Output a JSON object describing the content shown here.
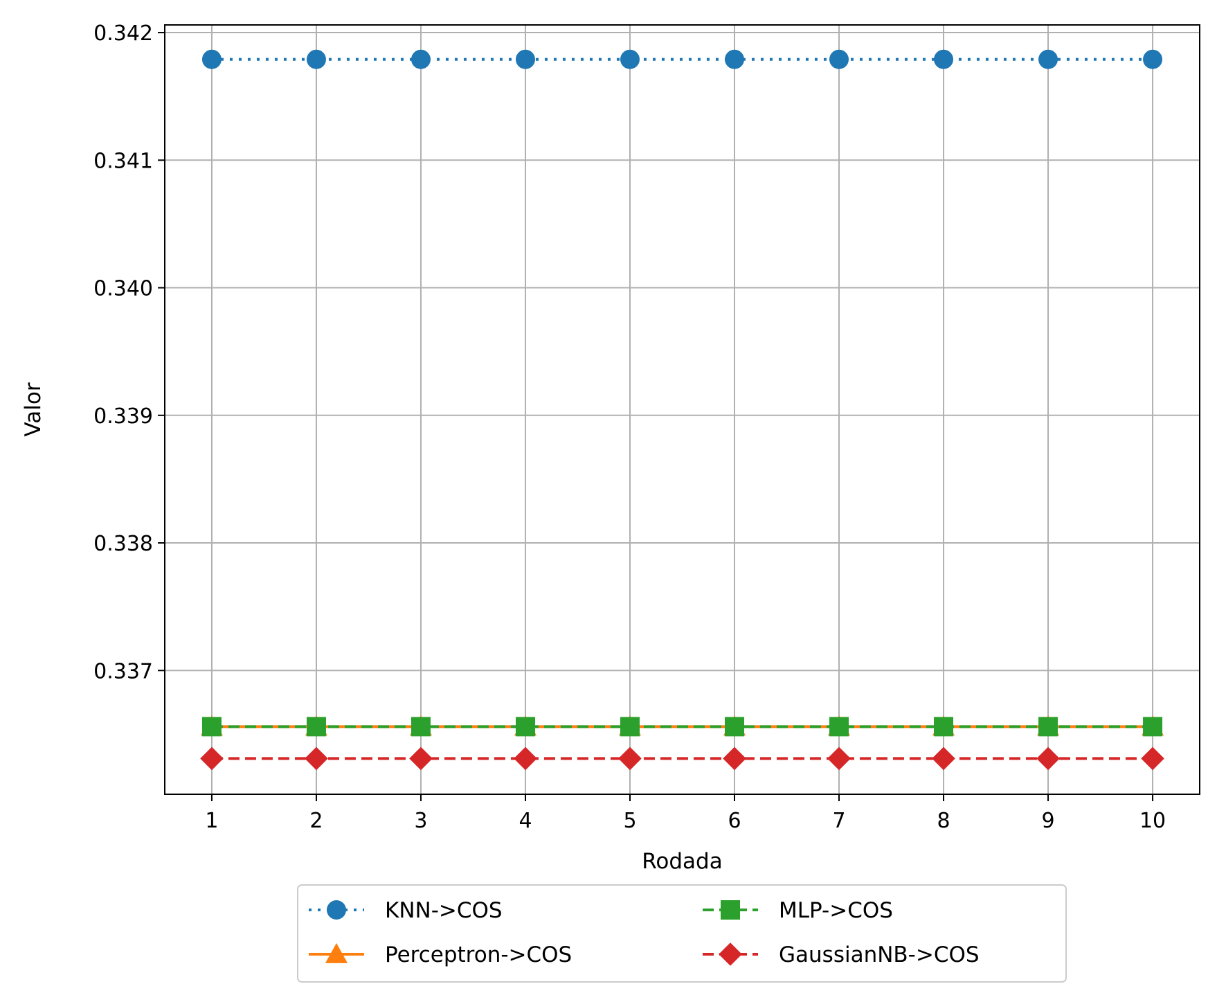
{
  "chart_data": {
    "type": "line",
    "title": "",
    "xlabel": "Rodada",
    "ylabel": "Valor",
    "x": [
      1,
      2,
      3,
      4,
      5,
      6,
      7,
      8,
      9,
      10
    ],
    "x_ticks": [
      "1",
      "2",
      "3",
      "4",
      "5",
      "6",
      "7",
      "8",
      "9",
      "10"
    ],
    "y_ticks": [
      "0.337",
      "0.338",
      "0.339",
      "0.340",
      "0.341",
      "0.342"
    ],
    "y_tick_values": [
      0.337,
      0.338,
      0.339,
      0.34,
      0.341,
      0.342
    ],
    "xlim": [
      0.55,
      10.45
    ],
    "ylim": [
      0.33603,
      0.34206
    ],
    "grid": true,
    "legend_position": "bottom-center (below plot, 2 columns)",
    "series": [
      {
        "name": "KNN->COS",
        "color": "#1f77b4",
        "line_style": "dotted",
        "marker": "circle",
        "values": [
          0.34179,
          0.34179,
          0.34179,
          0.34179,
          0.34179,
          0.34179,
          0.34179,
          0.34179,
          0.34179,
          0.34179
        ]
      },
      {
        "name": "Perceptron->COS",
        "color": "#ff7f0e",
        "line_style": "solid",
        "marker": "triangle",
        "values": [
          0.33656,
          0.33656,
          0.33656,
          0.33656,
          0.33656,
          0.33656,
          0.33656,
          0.33656,
          0.33656,
          0.33656
        ]
      },
      {
        "name": "MLP->COS",
        "color": "#2ca02c",
        "line_style": "dashed",
        "marker": "square",
        "values": [
          0.33656,
          0.33656,
          0.33656,
          0.33656,
          0.33656,
          0.33656,
          0.33656,
          0.33656,
          0.33656,
          0.33656
        ]
      },
      {
        "name": "GaussianNB->COS",
        "color": "#d62728",
        "line_style": "dashed",
        "marker": "diamond",
        "values": [
          0.33631,
          0.33631,
          0.33631,
          0.33631,
          0.33631,
          0.33631,
          0.33631,
          0.33631,
          0.33631,
          0.33631
        ]
      }
    ],
    "legend_order": [
      0,
      2,
      1,
      3
    ]
  }
}
